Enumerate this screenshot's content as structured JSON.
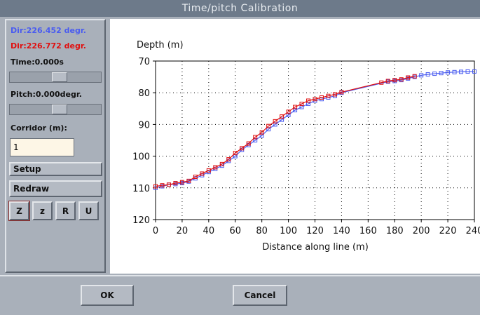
{
  "window": {
    "title": "Time/pitch Calibration"
  },
  "panel": {
    "dir_blue": "Dir:226.452 degr.",
    "dir_red": "Dir:226.772 degr.",
    "time": "Time:0.000s",
    "pitch": "Pitch:0.000degr.",
    "corridor_label": "Corridor (m):",
    "corridor_value": "1",
    "setup": "Setup",
    "redraw": "Redraw",
    "tools": [
      "Z",
      "z",
      "R",
      "U"
    ]
  },
  "footer": {
    "ok": "OK",
    "cancel": "Cancel"
  },
  "chart_data": {
    "type": "line",
    "y_label": "Depth (m)",
    "x_label": "Distance along line (m)",
    "xlim": [
      0,
      240
    ],
    "xticks": [
      0,
      20,
      40,
      60,
      80,
      100,
      120,
      140,
      160,
      180,
      200,
      220,
      240
    ],
    "ylim": [
      120,
      70
    ],
    "yticks": [
      70,
      80,
      90,
      100,
      110,
      120
    ],
    "grid": true,
    "series": [
      {
        "name": "Dir:226.452 degr.",
        "color": "#4a5cf0",
        "x": [
          0,
          5,
          10,
          15,
          20,
          25,
          30,
          35,
          40,
          45,
          50,
          55,
          60,
          65,
          70,
          75,
          80,
          85,
          90,
          95,
          100,
          105,
          110,
          115,
          120,
          125,
          130,
          135,
          140,
          175,
          180,
          185,
          190,
          195,
          200,
          205,
          210,
          215,
          220,
          225,
          230,
          235,
          240
        ],
        "values": [
          110,
          109.5,
          109,
          108.8,
          108.5,
          108,
          107,
          106,
          105,
          104,
          103,
          101.5,
          100,
          98,
          96.5,
          95,
          93.5,
          91.5,
          90,
          88.5,
          87,
          85.5,
          84.5,
          83.5,
          82.5,
          82,
          81.5,
          81,
          80,
          76.5,
          76.3,
          76,
          75.5,
          75,
          74.5,
          74.2,
          74,
          73.8,
          73.6,
          73.5,
          73.4,
          73.3,
          73.3
        ]
      },
      {
        "name": "Dir:226.772 degr.",
        "color": "#e01010",
        "x": [
          0,
          5,
          10,
          15,
          20,
          25,
          30,
          35,
          40,
          45,
          50,
          55,
          60,
          65,
          70,
          75,
          80,
          85,
          90,
          95,
          100,
          105,
          110,
          115,
          120,
          125,
          130,
          135,
          140,
          170,
          175,
          180,
          185,
          190,
          195
        ],
        "values": [
          109.5,
          109.2,
          109,
          108.5,
          108.2,
          107.8,
          106.5,
          105.5,
          104.5,
          103.5,
          102.5,
          101,
          99,
          97.5,
          96,
          94,
          92.5,
          90.5,
          89,
          87.5,
          86,
          84.5,
          83.5,
          82.5,
          82,
          81.5,
          81,
          80.5,
          79.8,
          76.8,
          76.3,
          76,
          75.8,
          75.2,
          74.8
        ]
      }
    ]
  }
}
